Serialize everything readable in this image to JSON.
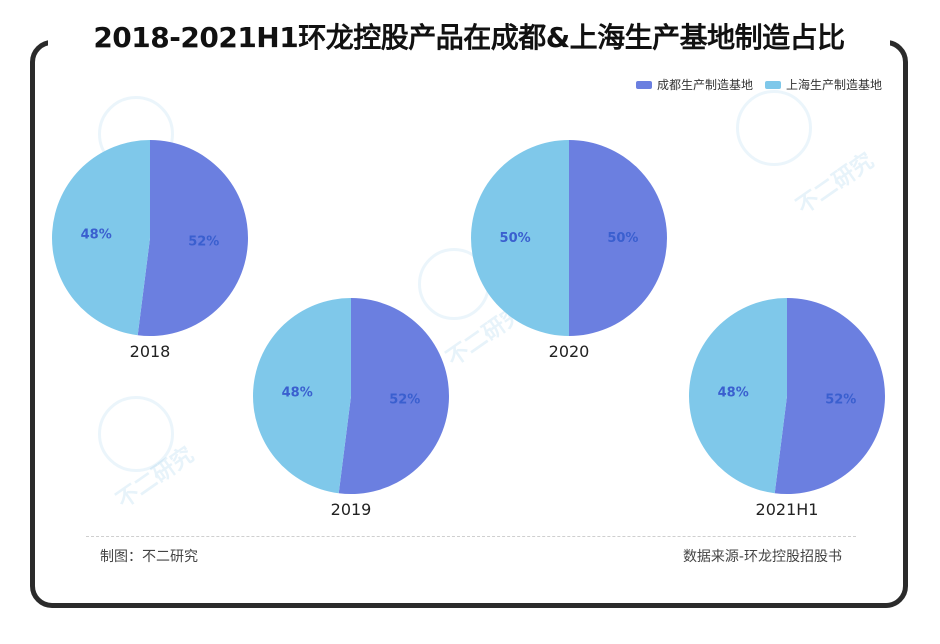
{
  "title": "2018-2021H1环龙控股产品在成都&上海生产基地制造占比",
  "legend": {
    "chengdu": "成都生产制造基地",
    "shanghai": "上海生产制造基地"
  },
  "colors": {
    "chengdu": "#6b7fe0",
    "shanghai": "#7fc8ea",
    "label": "#3a5fcf"
  },
  "footer": {
    "left": "制图：不二研究",
    "right": "数据来源-环龙控股招股书"
  },
  "watermark": "不二研究",
  "chart_data": {
    "type": "pie",
    "series_names": [
      "成都生产制造基地",
      "上海生产制造基地"
    ],
    "charts": [
      {
        "label": "2018",
        "values": [
          52,
          48
        ],
        "value_labels": [
          "52%",
          "48%"
        ]
      },
      {
        "label": "2019",
        "values": [
          52,
          48
        ],
        "value_labels": [
          "52%",
          "48%"
        ]
      },
      {
        "label": "2020",
        "values": [
          50,
          50
        ],
        "value_labels": [
          "50%",
          "50%"
        ]
      },
      {
        "label": "2021H1",
        "values": [
          52,
          48
        ],
        "value_labels": [
          "52%",
          "48%"
        ]
      }
    ]
  }
}
